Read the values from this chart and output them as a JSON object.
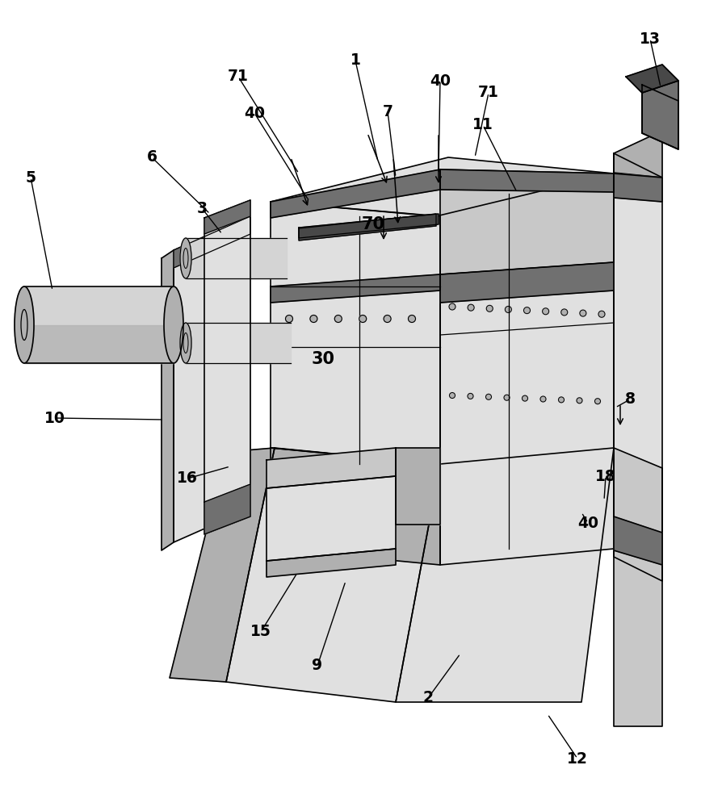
{
  "bg_color": "#ffffff",
  "light_gray": "#d4d4d4",
  "mid_gray": "#b0b0b0",
  "dark_gray": "#707070",
  "darker_gray": "#484848",
  "black": "#000000",
  "c1": "#e0e0e0",
  "c2": "#c8c8c8",
  "c3": "#a8a8a8"
}
